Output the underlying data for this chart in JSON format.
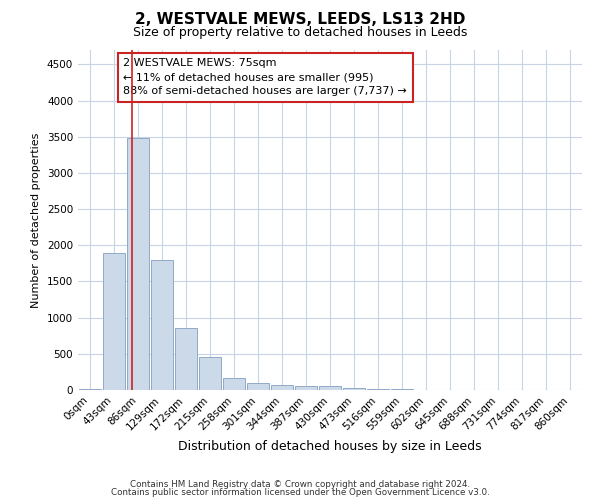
{
  "title": "2, WESTVALE MEWS, LEEDS, LS13 2HD",
  "subtitle": "Size of property relative to detached houses in Leeds",
  "xlabel": "Distribution of detached houses by size in Leeds",
  "ylabel": "Number of detached properties",
  "bar_labels": [
    "0sqm",
    "43sqm",
    "86sqm",
    "129sqm",
    "172sqm",
    "215sqm",
    "258sqm",
    "301sqm",
    "344sqm",
    "387sqm",
    "430sqm",
    "473sqm",
    "516sqm",
    "559sqm",
    "602sqm",
    "645sqm",
    "688sqm",
    "731sqm",
    "774sqm",
    "817sqm",
    "860sqm"
  ],
  "bar_heights": [
    18,
    1900,
    3480,
    1800,
    860,
    450,
    160,
    100,
    70,
    62,
    52,
    30,
    15,
    8,
    4,
    3,
    2,
    1,
    1,
    0,
    0
  ],
  "bar_color": "#ccd9e8",
  "bar_edge_color": "#8eaac8",
  "ylim": [
    0,
    4700
  ],
  "yticks": [
    0,
    500,
    1000,
    1500,
    2000,
    2500,
    3000,
    3500,
    4000,
    4500
  ],
  "property_line_x": 1.76,
  "property_line_color": "#cc2222",
  "annotation_text": "2 WESTVALE MEWS: 75sqm\n← 11% of detached houses are smaller (995)\n88% of semi-detached houses are larger (7,737) →",
  "annotation_box_color": "#ffffff",
  "annotation_box_edge": "#cc2222",
  "footer_line1": "Contains HM Land Registry data © Crown copyright and database right 2024.",
  "footer_line2": "Contains public sector information licensed under the Open Government Licence v3.0.",
  "background_color": "#ffffff",
  "grid_color": "#c8d4e4",
  "title_fontsize": 11,
  "subtitle_fontsize": 9,
  "tick_fontsize": 7.5,
  "ylabel_fontsize": 8,
  "xlabel_fontsize": 9
}
